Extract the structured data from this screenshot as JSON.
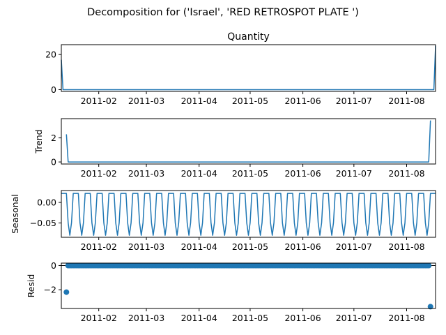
{
  "figure": {
    "title": "Decomposition for ('Israel', 'RED RETROSPOT PLATE ')"
  },
  "colors": {
    "series": "#1f77b4",
    "axis": "#000000",
    "background": "#ffffff"
  },
  "chart_data": [
    {
      "type": "line",
      "title": "Quantity",
      "ylabel": "",
      "x_range": [
        "2011-01-10",
        "2011-08-18"
      ],
      "x_ticks": [
        "2011-02",
        "2011-03",
        "2011-04",
        "2011-05",
        "2011-06",
        "2011-07",
        "2011-08"
      ],
      "ylim": [
        -1,
        25.6
      ],
      "y_ticks": [
        "0",
        "20"
      ],
      "series": [
        {
          "x": [
            "2011-01-10",
            "2011-01-11",
            "2011-08-17",
            "2011-08-18"
          ],
          "y": [
            17,
            0,
            0,
            25
          ]
        }
      ]
    },
    {
      "type": "line",
      "title": "",
      "ylabel": "Trend",
      "x_range": [
        "2011-01-10",
        "2011-08-18"
      ],
      "x_ticks": [
        "2011-02",
        "2011-03",
        "2011-04",
        "2011-05",
        "2011-06",
        "2011-07",
        "2011-08"
      ],
      "ylim": [
        -0.17,
        3.6
      ],
      "y_ticks": [
        "0",
        "2"
      ],
      "series": [
        {
          "x": [
            "2011-01-13",
            "2011-01-14",
            "2011-08-14",
            "2011-08-15"
          ],
          "y": [
            2.3,
            0,
            0,
            3.45
          ]
        }
      ]
    },
    {
      "type": "line",
      "title": "",
      "ylabel": "Seasonal",
      "x_range": [
        "2011-01-10",
        "2011-08-18"
      ],
      "x_ticks": [
        "2011-02",
        "2011-03",
        "2011-04",
        "2011-05",
        "2011-06",
        "2011-07",
        "2011-08"
      ],
      "ylim": [
        -0.085,
        0.029
      ],
      "y_ticks": [
        "0.00",
        "−0.05"
      ],
      "period_days": 7,
      "weekly_pattern": [
        0.022,
        0.022,
        0.022,
        0.022,
        -0.05,
        -0.08,
        -0.05
      ]
    },
    {
      "type": "scatter",
      "title": "",
      "ylabel": "Resid",
      "x_range": [
        "2011-01-10",
        "2011-08-18"
      ],
      "x_ticks": [
        "2011-02",
        "2011-03",
        "2011-04",
        "2011-05",
        "2011-06",
        "2011-07",
        "2011-08"
      ],
      "ylim": [
        -3.55,
        0.2
      ],
      "y_ticks": [
        "0",
        "−2"
      ],
      "baseline": 0,
      "zero_range": [
        "2011-01-14",
        "2011-08-14"
      ],
      "points": [
        {
          "x": "2011-01-13",
          "y": -2.2
        },
        {
          "x": "2011-08-15",
          "y": -3.4
        }
      ]
    }
  ]
}
